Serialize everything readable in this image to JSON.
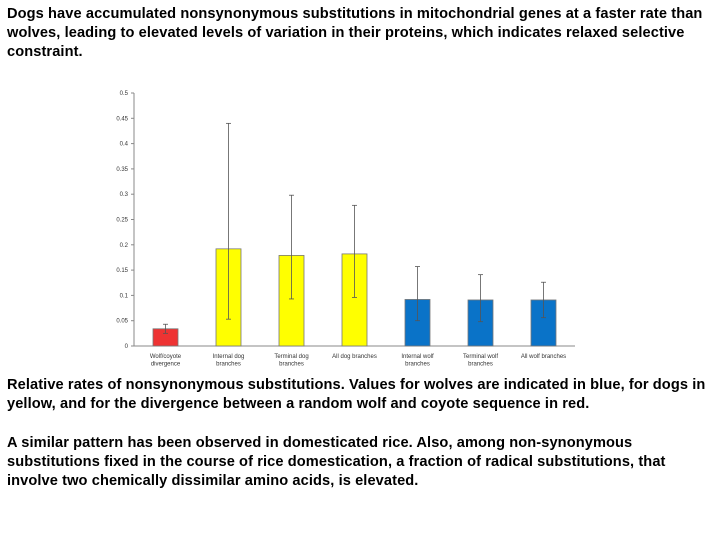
{
  "text": {
    "intro": "Dogs have accumulated nonsynonymous substitutions in mitochondrial genes at a faster rate than wolves, leading to elevated levels of variation in their proteins, which indicates relaxed selective constraint.",
    "caption": "Relative rates of nonsynonymous substitutions. Values for wolves are indicated in blue, for dogs in yellow, and for the divergence between a random wolf and coyote sequence in red.",
    "extra": "A similar pattern has been observed in domesticated rice. Also, among non-synonymous substitutions fixed in the course of rice domestication, a fraction of radical substitutions, that involve two chemically dissimilar amino acids, is elevated."
  },
  "chart_data": {
    "type": "bar",
    "ylim": [
      0,
      0.5
    ],
    "yticks": [
      "0",
      "0.05",
      "0.1",
      "0.15",
      "0.2",
      "0.25",
      "0.3",
      "0.35",
      "0.4",
      "0.45",
      "0.5"
    ],
    "categories": [
      [
        "Wolf/coyote",
        "divergence"
      ],
      [
        "Internal dog",
        "branches"
      ],
      [
        "Terminal dog",
        "branches"
      ],
      [
        "All dog branches"
      ],
      [
        "Internal wolf",
        "branches"
      ],
      [
        "Terminal wolf",
        "branches"
      ],
      [
        "All wolf branches"
      ]
    ],
    "values": [
      0.034,
      0.192,
      0.179,
      0.182,
      0.092,
      0.091,
      0.091
    ],
    "error_low": [
      0.025,
      0.053,
      0.093,
      0.096,
      0.05,
      0.048,
      0.056
    ],
    "error_high": [
      0.043,
      0.44,
      0.298,
      0.278,
      0.157,
      0.141,
      0.126
    ],
    "colors": [
      "#ee3333",
      "#ffff00",
      "#ffff00",
      "#ffff00",
      "#0a73c8",
      "#0a73c8",
      "#0a73c8"
    ]
  }
}
